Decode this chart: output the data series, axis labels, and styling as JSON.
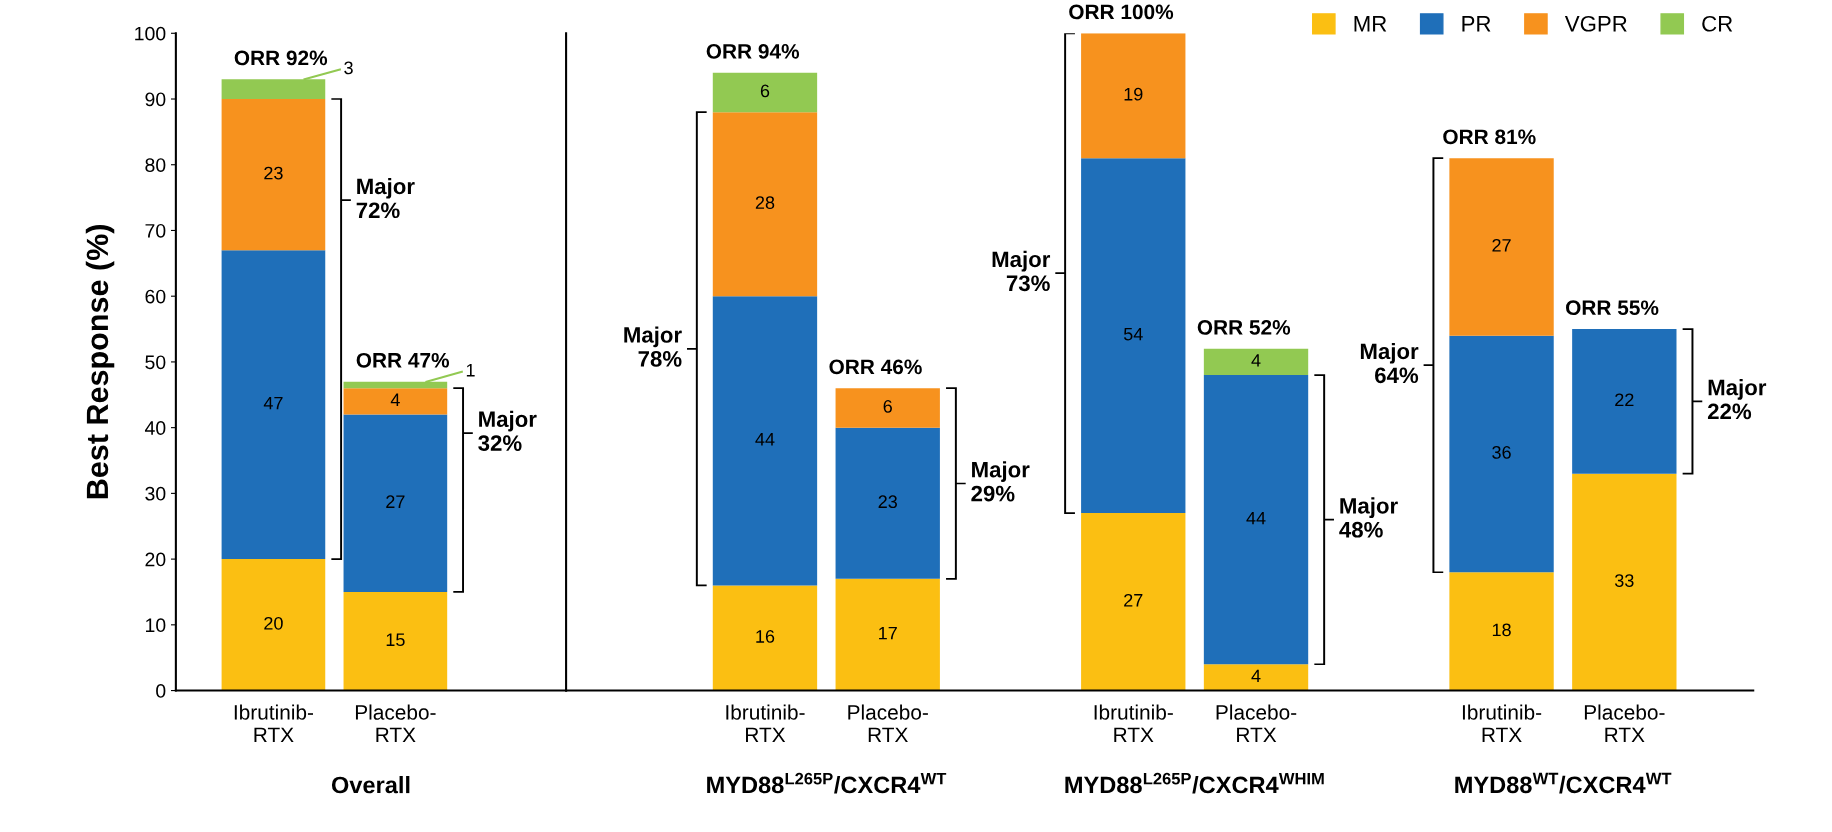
{
  "chart_data": [
    {
      "type": "bar",
      "stacked": true,
      "categories": [
        "Ibrutinib-\nRTX",
        "Placebo-\nRTX"
      ],
      "series": [
        {
          "color": "#fbbf12",
          "values": [
            20,
            15
          ]
        },
        {
          "color": "#1f6fb9",
          "values": [
            47,
            27
          ]
        },
        {
          "color": "#f7921e",
          "values": [
            23,
            4
          ]
        },
        {
          "color": "#92c952",
          "values": [
            3,
            1
          ]
        }
      ],
      "ylim": [
        0,
        100
      ],
      "yticks": [
        0,
        10,
        20,
        30,
        40,
        50,
        60,
        70,
        80,
        90,
        100
      ],
      "ylabel": "Best Response (%)",
      "xlabel": "Overall",
      "data_labels": true,
      "totals": [
        "ORR 92%",
        "ORR 47%"
      ],
      "annotations": [
        "Major\n72%",
        "Major\n32%"
      ],
      "grid": false,
      "legend": false
    },
    {
      "type": "bar",
      "stacked": true,
      "categories": [
        "Ibrutinib-\nRTX",
        "Placebo-\nRTX",
        null,
        "Ibrutinib-\nRTX",
        "Placebo-\nRTX",
        null,
        "Ibrutinib-\nRTX",
        "Placebo-\nRTX"
      ],
      "series": [
        {
          "name": "MR",
          "color": "#fbbf12",
          "values": [
            16,
            17,
            null,
            27,
            4,
            null,
            18,
            33
          ]
        },
        {
          "name": "PR",
          "color": "#1f6fb9",
          "values": [
            44,
            23,
            null,
            54,
            44,
            null,
            36,
            22
          ]
        },
        {
          "name": "VGPR",
          "color": "#f7921e",
          "values": [
            28,
            6,
            null,
            19,
            null,
            null,
            27,
            null
          ]
        },
        {
          "name": "CR",
          "color": "#92c952",
          "values": [
            6,
            null,
            null,
            null,
            4,
            null,
            null,
            null
          ]
        }
      ],
      "ylim": [
        0,
        100
      ],
      "tick_labels": "x",
      "data_labels": true,
      "totals": [
        "ORR 94%",
        "ORR 46%",
        null,
        "ORR 100%",
        "ORR 52%",
        null,
        "ORR 81%",
        "ORR 55%"
      ],
      "annotations": [
        "Major\n78%",
        "Major\n29%",
        "Major\n73%",
        "Major\n48%",
        "Major\n64%",
        "Major\n22%",
        "MYD88$^{L265P}$/CXCR4$^{WT}$",
        "MYD88$^{L265P}$/CXCR4$^{WHIM}$",
        "MYD88$^{WT}$/CXCR4$^{WT}$"
      ],
      "grid": false,
      "legend": "top right"
    }
  ]
}
